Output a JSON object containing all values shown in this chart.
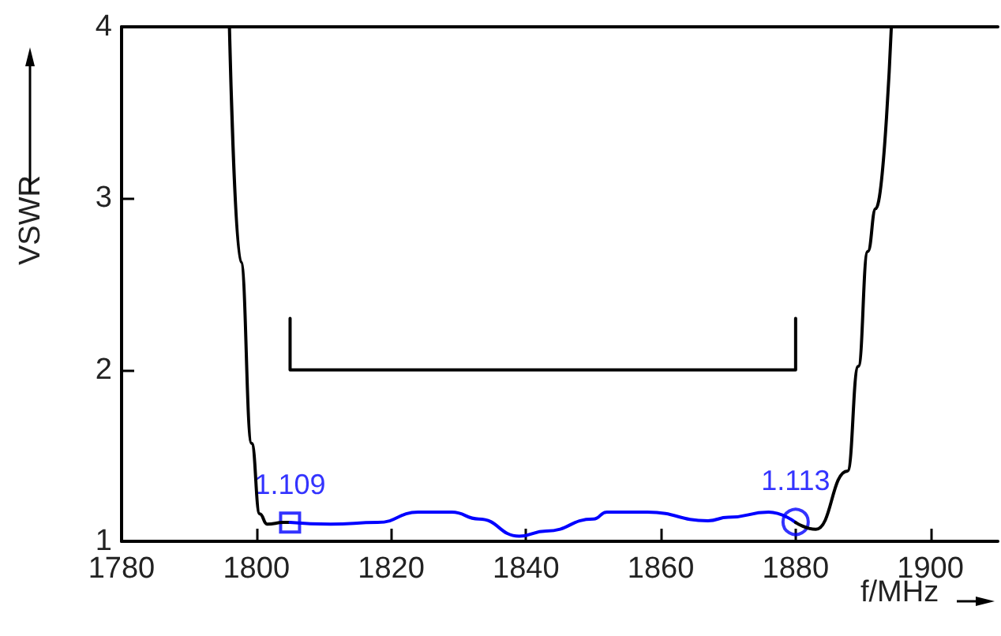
{
  "chart_data": {
    "type": "line",
    "xlabel": "f/MHz",
    "ylabel": "VSWR",
    "xlim": [
      1780,
      1910
    ],
    "xticks": [
      1780,
      1800,
      1820,
      1840,
      1860,
      1880,
      1900
    ],
    "ylim": [
      1,
      4
    ],
    "yticks": [
      1,
      2,
      3,
      4
    ],
    "grid": false,
    "marker": "none",
    "line_style": "solid",
    "series": [
      {
        "color": "#000000",
        "x": [
          1796,
          1797.7,
          1799.3,
          1800.5,
          1801.6,
          1804,
          1805
        ],
        "values": [
          4,
          2.63,
          1.57,
          1.16,
          1.1,
          1.11,
          1.11
        ]
      },
      {
        "color": "#0000ff",
        "x": [
          1805,
          1811,
          1818,
          1824,
          1829,
          1833,
          1839,
          1843,
          1850,
          1852,
          1858,
          1867,
          1870,
          1876,
          1880
        ],
        "values": [
          1.11,
          1.1,
          1.11,
          1.17,
          1.17,
          1.13,
          1.03,
          1.06,
          1.13,
          1.17,
          1.17,
          1.12,
          1.14,
          1.17,
          1.11
        ]
      },
      {
        "color": "#000000",
        "x": [
          1880,
          1883,
          1887.7,
          1889.3,
          1890.7,
          1891.9,
          1894.2
        ],
        "values": [
          1.11,
          1.07,
          1.41,
          2.02,
          2.69,
          2.94,
          4
        ]
      },
      {
        "color": "#000000",
        "x": [
          1805,
          1805,
          1880,
          1880
        ],
        "values": [
          2.3,
          2,
          2,
          2.3
        ]
      },
      {
        "type": "scatter",
        "color": "#0000ff",
        "marker": "square",
        "data_labels": true,
        "x": [
          1805
        ],
        "values": [
          1.109
        ]
      },
      {
        "type": "scatter",
        "color": "#0000ff",
        "marker": "circle",
        "data_labels": true,
        "x": [
          1880
        ],
        "values": [
          1.113
        ]
      }
    ]
  }
}
